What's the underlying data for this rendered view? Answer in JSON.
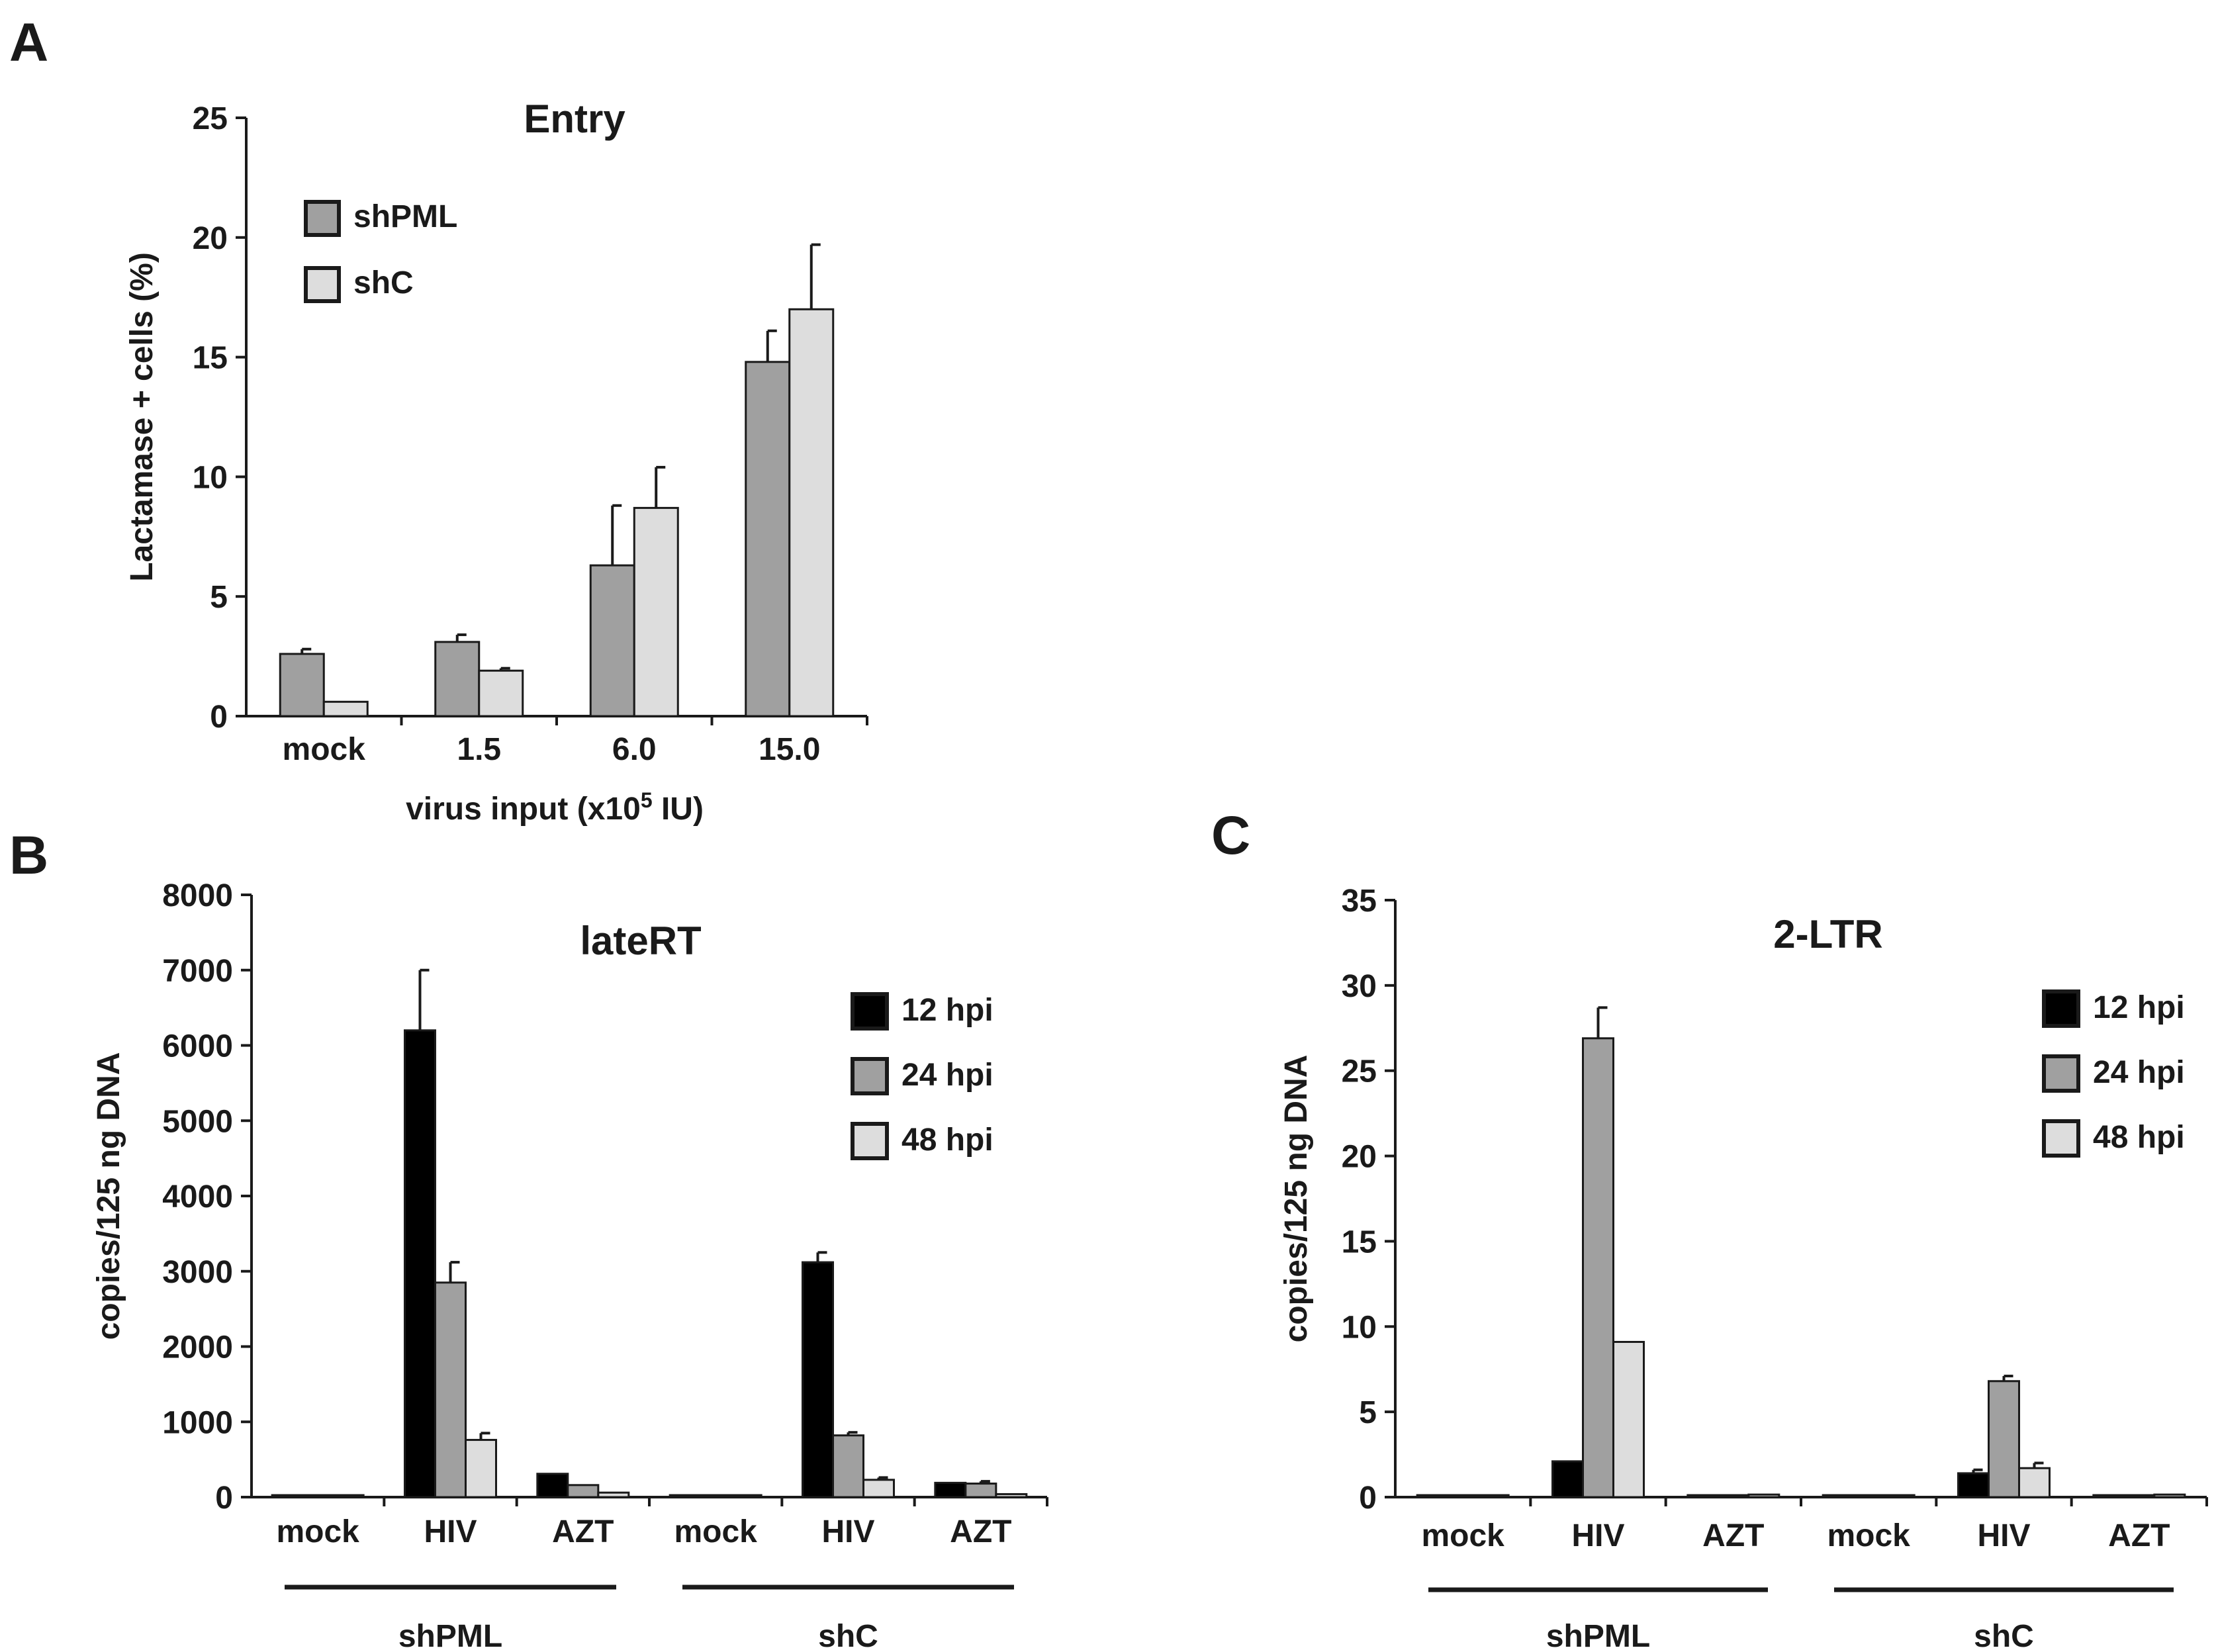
{
  "colors": {
    "shPML": "#a0a0a0",
    "shC": "#dddddd",
    "h12": "#000000",
    "h24": "#a0a0a0",
    "h48": "#dddddd",
    "axis": "#1a1a1a"
  },
  "chart_data": [
    {
      "panel": "A",
      "type": "bar",
      "title": "Entry",
      "ylabel": "Lactamase + cells (%)",
      "xlabel_main": "virus input (x10",
      "xlabel_sup": "5",
      "xlabel_tail": " IU)",
      "ylim": [
        0,
        25
      ],
      "yticks": [
        0,
        5,
        10,
        15,
        20,
        25
      ],
      "categories": [
        "mock",
        "1.5",
        "6.0",
        "15.0"
      ],
      "series": [
        {
          "name": "shPML",
          "color_key": "shPML",
          "values": [
            2.6,
            3.1,
            6.3,
            14.8
          ],
          "errors": [
            0.2,
            0.3,
            2.5,
            1.3
          ]
        },
        {
          "name": "shC",
          "color_key": "shC",
          "values": [
            0.6,
            1.9,
            8.7,
            17.0
          ],
          "errors": [
            0.0,
            0.1,
            1.7,
            2.7
          ]
        }
      ],
      "legend_position": "top-left"
    },
    {
      "panel": "B",
      "type": "bar",
      "title": "lateRT",
      "ylabel": "copies/125 ng DNA",
      "ylim": [
        0,
        8000
      ],
      "yticks": [
        0,
        1000,
        2000,
        3000,
        4000,
        5000,
        6000,
        7000,
        8000
      ],
      "categories": [
        "mock",
        "HIV",
        "AZT",
        "mock",
        "HIV",
        "AZT"
      ],
      "groups": [
        {
          "label": "shPML",
          "categories": [
            0,
            1,
            2
          ]
        },
        {
          "label": "shC",
          "categories": [
            3,
            4,
            5
          ]
        }
      ],
      "series": [
        {
          "name": "12 hpi",
          "color_key": "h12",
          "values": [
            10,
            6200,
            310,
            10,
            3120,
            190
          ],
          "errors": [
            0,
            800,
            0,
            0,
            130,
            0
          ]
        },
        {
          "name": "24 hpi",
          "color_key": "h24",
          "values": [
            10,
            2850,
            160,
            10,
            820,
            180
          ],
          "errors": [
            0,
            270,
            0,
            0,
            40,
            30
          ]
        },
        {
          "name": "48 hpi",
          "color_key": "h48",
          "values": [
            10,
            760,
            60,
            10,
            230,
            40
          ],
          "errors": [
            0,
            90,
            0,
            0,
            30,
            0
          ]
        }
      ],
      "legend_position": "top-right"
    },
    {
      "panel": "C",
      "type": "bar",
      "title": "2-LTR",
      "ylabel": "copies/125 ng DNA",
      "ylim": [
        0,
        35
      ],
      "yticks": [
        0,
        5,
        10,
        15,
        20,
        25,
        30,
        35
      ],
      "categories": [
        "mock",
        "HIV",
        "AZT",
        "mock",
        "HIV",
        "AZT"
      ],
      "groups": [
        {
          "label": "shPML",
          "categories": [
            0,
            1,
            2
          ]
        },
        {
          "label": "shC",
          "categories": [
            3,
            4,
            5
          ]
        }
      ],
      "series": [
        {
          "name": "12 hpi",
          "color_key": "h12",
          "values": [
            0.05,
            2.1,
            0.05,
            0.05,
            1.4,
            0.05
          ],
          "errors": [
            0,
            0,
            0,
            0,
            0.2,
            0
          ]
        },
        {
          "name": "24 hpi",
          "color_key": "h24",
          "values": [
            0.05,
            26.9,
            0.05,
            0.05,
            6.8,
            0.1
          ],
          "errors": [
            0,
            1.8,
            0,
            0,
            0.3,
            0
          ]
        },
        {
          "name": "48 hpi",
          "color_key": "h48",
          "values": [
            0.05,
            9.1,
            0.15,
            0.05,
            1.7,
            0.15
          ],
          "errors": [
            0,
            0,
            0,
            0,
            0.3,
            0
          ]
        }
      ],
      "legend_position": "top-right"
    }
  ]
}
